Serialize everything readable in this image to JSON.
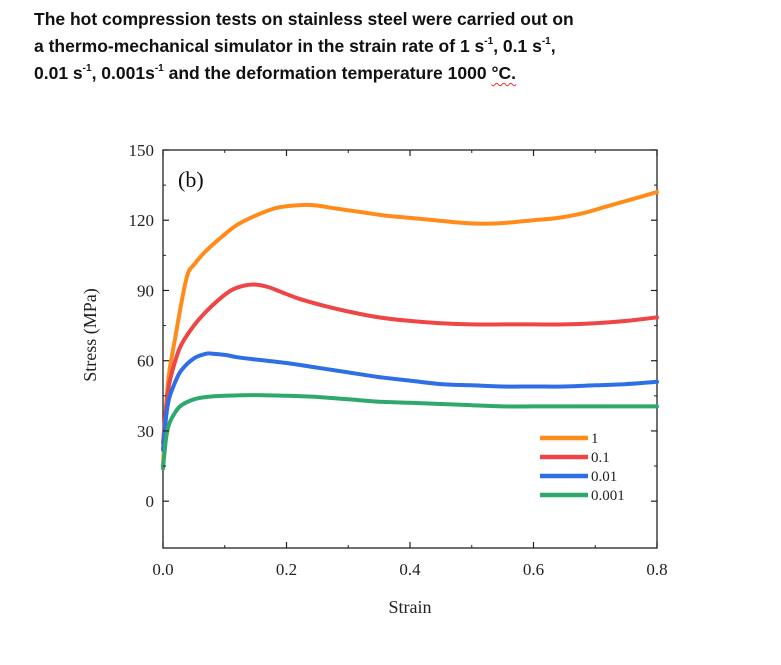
{
  "header": {
    "line1": "The hot compression tests on stainless steel were carried out on",
    "line2": "a thermo-mechanical simulator in the strain rate of 1 s",
    "line2_sup1": "-1",
    "line2_mid": ", 0.1 s",
    "line2_sup2": "-1",
    "line2_end": ",",
    "line3_a": "0.01 s",
    "line3_sup1": "-1",
    "line3_b": ", 0.001s",
    "line3_sup2": "-1",
    "line3_c": " and the deformation temperature 1000 ",
    "line3_unit": "°C.",
    "underline_color": "#e0322f"
  },
  "chart_data": {
    "type": "line",
    "title": "",
    "panel_label": "(b)",
    "xlabel": "Strain",
    "ylabel": "Stress (MPa)",
    "xlim": [
      0.0,
      0.8
    ],
    "ylim": [
      -20,
      150
    ],
    "xticks": [
      0.0,
      0.2,
      0.4,
      0.6,
      0.8
    ],
    "xtick_labels": [
      "0.0",
      "0.2",
      "0.4",
      "0.6",
      "0.8"
    ],
    "yticks": [
      0,
      30,
      60,
      90,
      120,
      150
    ],
    "ytick_labels": [
      "0",
      "30",
      "60",
      "90",
      "120",
      "150"
    ],
    "grid": false,
    "legend_position": "lower-right",
    "series": [
      {
        "name": "1",
        "color": "#ff8c1a",
        "x": [
          0.0,
          0.005,
          0.01,
          0.02,
          0.03,
          0.04,
          0.05,
          0.07,
          0.1,
          0.12,
          0.15,
          0.18,
          0.2,
          0.24,
          0.28,
          0.32,
          0.36,
          0.4,
          0.44,
          0.48,
          0.52,
          0.56,
          0.6,
          0.64,
          0.68,
          0.72,
          0.76,
          0.8
        ],
        "y": [
          15,
          40,
          55,
          70,
          85,
          97,
          101,
          107,
          114,
          118,
          122,
          125,
          126,
          126.5,
          125,
          123.5,
          122,
          121,
          120,
          119,
          118.5,
          119,
          120,
          121,
          123,
          126,
          129,
          132
        ]
      },
      {
        "name": "0.1",
        "color": "#ee4646",
        "x": [
          0.0,
          0.005,
          0.01,
          0.02,
          0.03,
          0.05,
          0.07,
          0.09,
          0.11,
          0.13,
          0.15,
          0.17,
          0.19,
          0.22,
          0.26,
          0.3,
          0.35,
          0.4,
          0.45,
          0.5,
          0.55,
          0.6,
          0.65,
          0.7,
          0.75,
          0.8
        ],
        "y": [
          25,
          40,
          50,
          60,
          67,
          75,
          81,
          86,
          90,
          92,
          92.5,
          91.5,
          89.5,
          86.5,
          83.5,
          81,
          78.5,
          77,
          76,
          75.5,
          75.5,
          75.5,
          75.5,
          76,
          77,
          78.5
        ]
      },
      {
        "name": "0.01",
        "color": "#2f6fe6",
        "x": [
          0.0,
          0.005,
          0.01,
          0.02,
          0.03,
          0.05,
          0.07,
          0.08,
          0.1,
          0.12,
          0.15,
          0.2,
          0.25,
          0.3,
          0.35,
          0.4,
          0.45,
          0.5,
          0.55,
          0.6,
          0.65,
          0.7,
          0.75,
          0.8
        ],
        "y": [
          22,
          36,
          44,
          51,
          56,
          61,
          63,
          63,
          62.5,
          61.5,
          60.5,
          59,
          57,
          55,
          53,
          51.5,
          50,
          49.5,
          49,
          49,
          49,
          49.5,
          50,
          51
        ]
      },
      {
        "name": "0.001",
        "color": "#2fa86b",
        "x": [
          0.0,
          0.005,
          0.01,
          0.02,
          0.03,
          0.05,
          0.07,
          0.1,
          0.15,
          0.2,
          0.25,
          0.3,
          0.35,
          0.4,
          0.45,
          0.5,
          0.55,
          0.6,
          0.65,
          0.7,
          0.75,
          0.8
        ],
        "y": [
          14,
          27,
          33,
          38,
          41,
          43.5,
          44.5,
          45,
          45.3,
          45,
          44.5,
          43.5,
          42.5,
          42,
          41.5,
          41,
          40.5,
          40.5,
          40.5,
          40.5,
          40.5,
          40.5
        ]
      }
    ]
  }
}
